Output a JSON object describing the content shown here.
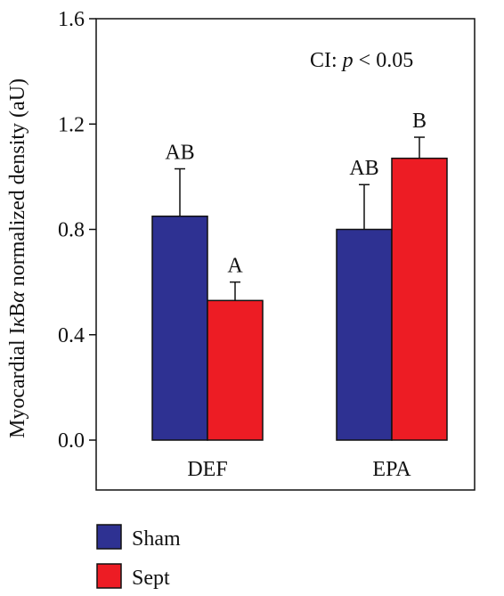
{
  "chart_data": {
    "type": "bar",
    "categories": [
      "DEF",
      "EPA"
    ],
    "series": [
      {
        "name": "Sham",
        "values": [
          0.85,
          0.8
        ],
        "errors": [
          0.18,
          0.17
        ],
        "significance": [
          "AB",
          "AB"
        ],
        "color": "#2e3192"
      },
      {
        "name": "Sept",
        "values": [
          0.53,
          1.07
        ],
        "errors": [
          0.07,
          0.08
        ],
        "significance": [
          "A",
          "B"
        ],
        "color": "#ed1c24"
      }
    ],
    "ylabel_pre": "Myocardial I",
    "ylabel_kappa": "κ",
    "ylabel_b": "B",
    "ylabel_alpha": "α",
    "ylabel_post": " normalized density (aU)",
    "ylim": [
      0.0,
      1.6
    ],
    "yticks": [
      "0.0",
      "0.4",
      "0.8",
      "1.2",
      "1.6"
    ],
    "annotation_pre": "CI: ",
    "annotation_p": "p",
    "annotation_post": " < 0.05",
    "legend_position": "bottom-left",
    "grid": false
  }
}
